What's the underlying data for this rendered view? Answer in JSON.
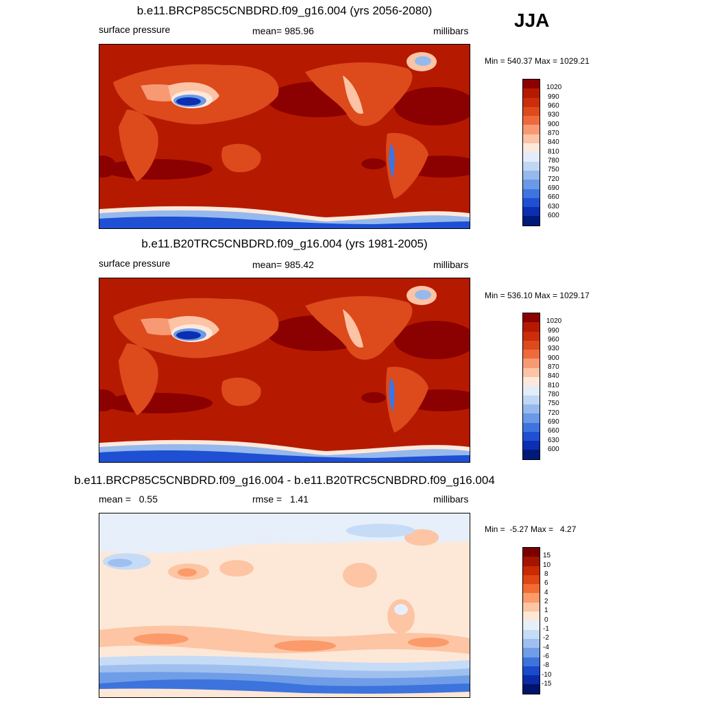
{
  "season": "JJA",
  "panels": [
    {
      "title": "b.e11.BRCP85C5CNBDRD.f09_g16.004 (yrs 2056-2080)",
      "left_label": "surface pressure",
      "center_label": "mean= 985.96",
      "right_label": "millibars",
      "minmax": "Min = 540.37 Max = 1029.21",
      "colorbar_labels": [
        "1020",
        "990",
        "960",
        "930",
        "900",
        "870",
        "840",
        "810",
        "780",
        "750",
        "720",
        "690",
        "660",
        "630",
        "600"
      ]
    },
    {
      "title": "b.e11.B20TRC5CNBDRD.f09_g16.004 (yrs 1981-2005)",
      "left_label": "surface pressure",
      "center_label": "mean= 985.42",
      "right_label": "millibars",
      "minmax": "Min = 536.10 Max = 1029.17",
      "colorbar_labels": [
        "1020",
        "990",
        "960",
        "930",
        "900",
        "870",
        "840",
        "810",
        "780",
        "750",
        "720",
        "690",
        "660",
        "630",
        "600"
      ]
    },
    {
      "title": "b.e11.BRCP85C5CNBDRD.f09_g16.004 - b.e11.B20TRC5CNBDRD.f09_g16.004",
      "left_label": "mean =   0.55",
      "center_label": "rmse =   1.41",
      "right_label": "millibars",
      "minmax": "Min =  -5.27 Max =   4.27",
      "colorbar_labels": [
        "15",
        "10",
        "8",
        "6",
        "4",
        "2",
        "1",
        "0",
        "-1",
        "-2",
        "-4",
        "-6",
        "-8",
        "-10",
        "-15"
      ]
    }
  ],
  "colors": {
    "abs_scale": [
      "#8b0000",
      "#b51a00",
      "#cc2d0a",
      "#dd4a1c",
      "#ef6a3a",
      "#f79a74",
      "#fcc3a5",
      "#fde9dc",
      "#e2edf9",
      "#c0d6f3",
      "#95b9ec",
      "#6a99e6",
      "#3f74e0",
      "#1f4fd3",
      "#0b2fb0",
      "#001a7a"
    ],
    "diff_scale": [
      "#7a0000",
      "#a31500",
      "#c92a00",
      "#e04515",
      "#f36b33",
      "#fb9a6a",
      "#fdc5a4",
      "#fde8d8",
      "#e6effa",
      "#c6dbf6",
      "#9fc0ef",
      "#6f9de7",
      "#3d73dc",
      "#1b49cb",
      "#0a2ba8",
      "#00146b"
    ]
  }
}
